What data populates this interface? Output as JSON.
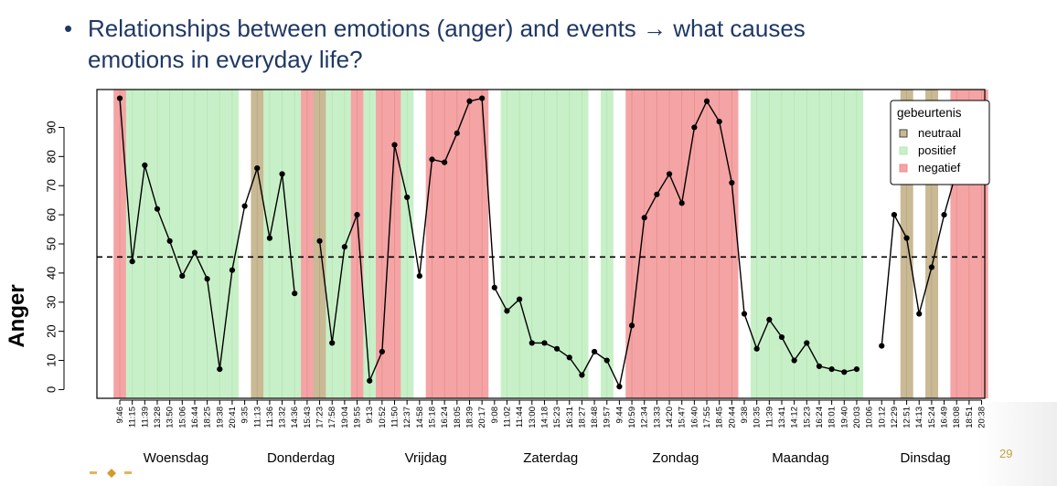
{
  "slide": {
    "bullet_symbol": "•",
    "title_line1": "Relationships between emotions (anger) and events → what causes",
    "title_line2": "emotions in everyday life?",
    "page_number": "29"
  },
  "chart_data": {
    "type": "line",
    "ylabel": "Anger",
    "ylim": [
      -3,
      103
    ],
    "yticks": [
      0,
      10,
      20,
      30,
      40,
      50,
      60,
      70,
      80,
      90
    ],
    "reference_line": 45.5,
    "x_labels": [
      "9:46",
      "11:15",
      "11:39",
      "13:28",
      "13:50",
      "15:06",
      "16:44",
      "18:25",
      "19:38",
      "20:41",
      "9:35",
      "11:13",
      "11:36",
      "13:32",
      "14:36",
      "15:43",
      "17:23",
      "17:58",
      "19:04",
      "19:55",
      "9:13",
      "10:52",
      "11:50",
      "12:37",
      "14:58",
      "15:18",
      "16:24",
      "18:05",
      "18:39",
      "20:17",
      "9:08",
      "11:02",
      "11:44",
      "13:00",
      "14:18",
      "15:23",
      "16:31",
      "18:27",
      "18:48",
      "19:57",
      "9:44",
      "10:59",
      "12:34",
      "13:33",
      "14:20",
      "15:47",
      "16:40",
      "17:55",
      "18:45",
      "20:44",
      "9:38",
      "10:35",
      "11:39",
      "13:41",
      "14:12",
      "15:23",
      "16:24",
      "18:01",
      "19:40",
      "20:03",
      "10:06",
      "10:12",
      "12:29",
      "12:51",
      "14:13",
      "15:24",
      "16:49",
      "18:08",
      "18:51",
      "20:38"
    ],
    "values": [
      100,
      44,
      77,
      62,
      51,
      39,
      47,
      38,
      7,
      41,
      63,
      76,
      52,
      74,
      33,
      null,
      51,
      16,
      49,
      60,
      3,
      13,
      84,
      66,
      39,
      79,
      78,
      88,
      99,
      100,
      35,
      27,
      31,
      16,
      16,
      14,
      11,
      5,
      13,
      10,
      1,
      22,
      59,
      67,
      74,
      64,
      90,
      99,
      92,
      71,
      26,
      14,
      24,
      18,
      10,
      16,
      8,
      7,
      6,
      7,
      null,
      15,
      60,
      52,
      26,
      42,
      60,
      75,
      null,
      null
    ],
    "event_colors": {
      "neutraal": "#c9b994",
      "positief": "#c8f0c8",
      "negatief": "#f4a4a4"
    },
    "events": [
      "negatief",
      "positief",
      "positief",
      "positief",
      "positief",
      "positief",
      "positief",
      "positief",
      "positief",
      "positief",
      null,
      "neutraal",
      "positief",
      "positief",
      "positief",
      "negatief",
      "neutraal",
      "positief",
      "positief",
      "negatief",
      "positief",
      "negatief",
      "negatief",
      "positief",
      null,
      "negatief",
      "negatief",
      "negatief",
      "negatief",
      "negatief",
      null,
      "positief",
      "positief",
      "positief",
      "positief",
      "positief",
      "positief",
      "positief",
      null,
      "positief",
      null,
      "negatief",
      "negatief",
      "negatief",
      "negatief",
      "negatief",
      "negatief",
      "negatief",
      "negatief",
      "negatief",
      null,
      "positief",
      "positief",
      "positief",
      "positief",
      "positief",
      "positief",
      "positief",
      "positief",
      "positief",
      null,
      null,
      null,
      "neutraal",
      null,
      "neutraal",
      null,
      "negatief",
      "negatief",
      "negatief"
    ],
    "days": [
      {
        "label": "Woensdag",
        "start": 0,
        "end": 9
      },
      {
        "label": "Donderdag",
        "start": 10,
        "end": 19
      },
      {
        "label": "Vrijdag",
        "start": 20,
        "end": 29
      },
      {
        "label": "Zaterdag",
        "start": 30,
        "end": 39
      },
      {
        "label": "Zondag",
        "start": 40,
        "end": 49
      },
      {
        "label": "Maandag",
        "start": 50,
        "end": 59
      },
      {
        "label": "Dinsdag",
        "start": 60,
        "end": 69
      }
    ],
    "legend": {
      "title": "gebeurtenis",
      "position": "top-right",
      "entries": [
        {
          "label": "neutraal",
          "key": "neutraal"
        },
        {
          "label": "positief",
          "key": "positief"
        },
        {
          "label": "negatief",
          "key": "negatief"
        }
      ]
    },
    "grid": false
  }
}
